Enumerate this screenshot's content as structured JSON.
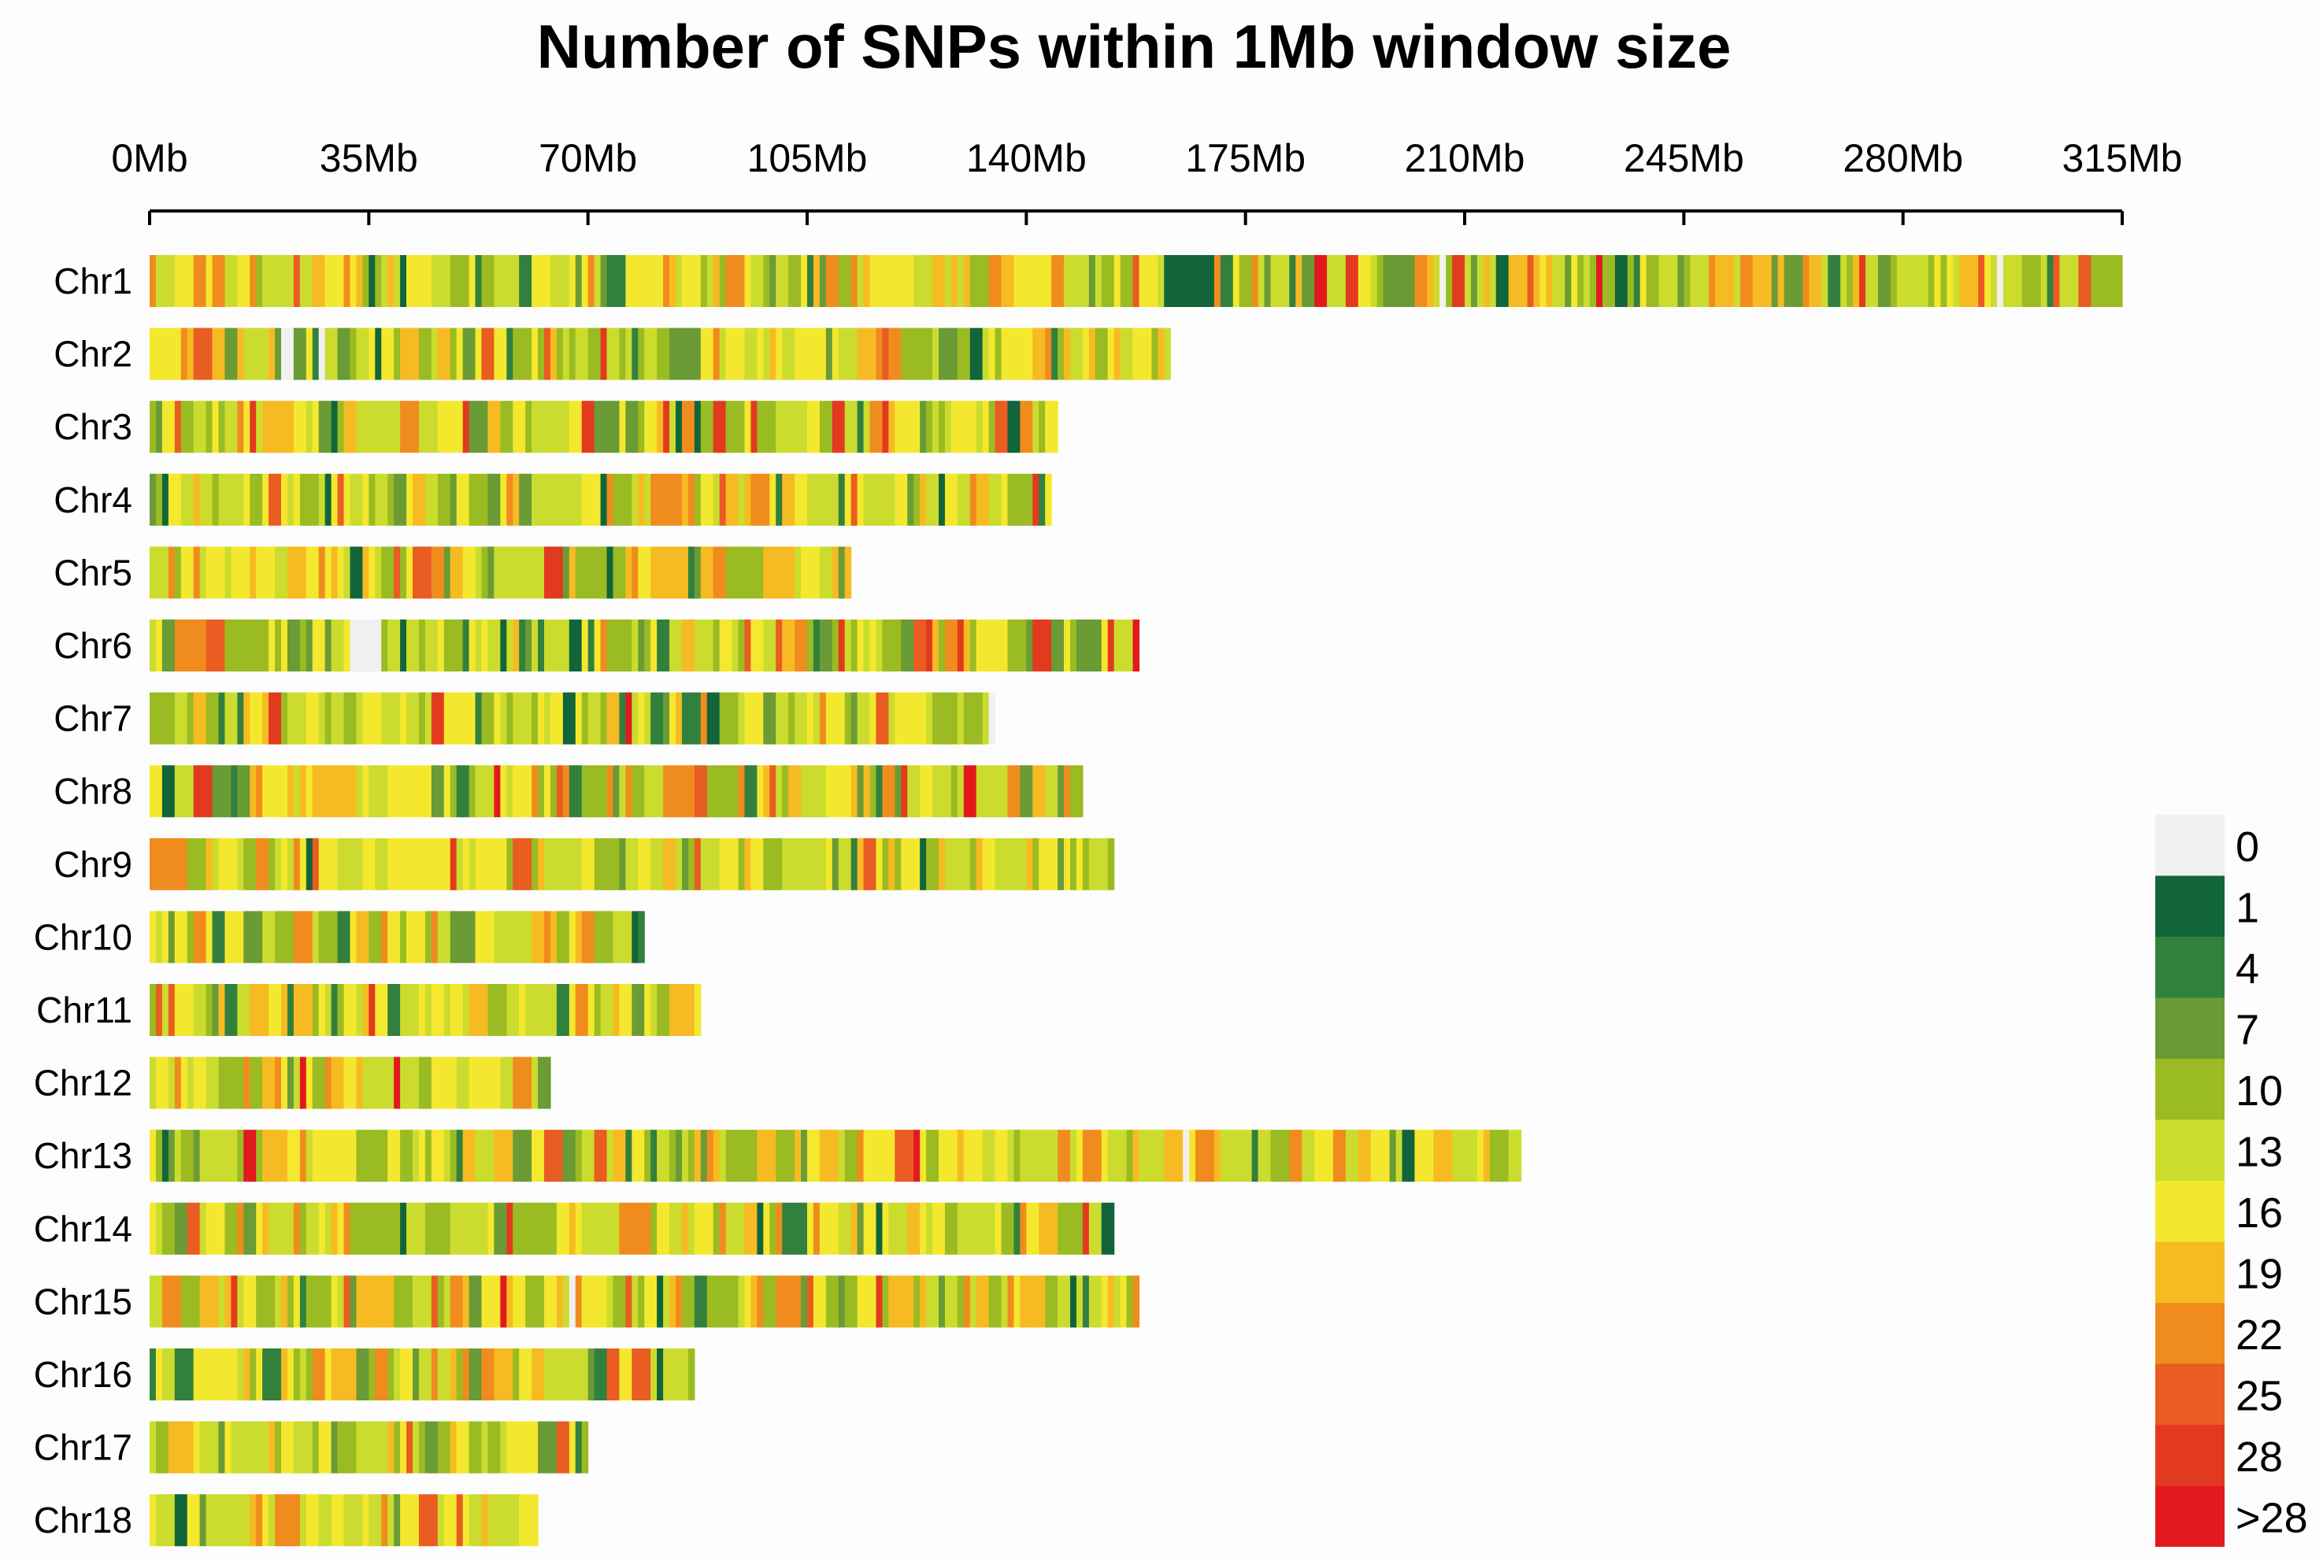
{
  "chart_data": {
    "type": "heatmap",
    "title": "Number of SNPs within 1Mb window size",
    "xlabel": "",
    "ylabel": "",
    "x_unit": "Mb",
    "xlim": [
      0,
      315
    ],
    "x_ticks": [
      0,
      35,
      70,
      105,
      140,
      175,
      210,
      245,
      280,
      315
    ],
    "x_tick_labels": [
      "0Mb",
      "35Mb",
      "70Mb",
      "105Mb",
      "140Mb",
      "175Mb",
      "210Mb",
      "245Mb",
      "280Mb",
      "315Mb"
    ],
    "legend": {
      "placement": "bottom-right",
      "bins": [
        {
          "label": "0",
          "color": "#f0f1f0"
        },
        {
          "label": "1",
          "color": "#12653a"
        },
        {
          "label": "4",
          "color": "#32803e"
        },
        {
          "label": "7",
          "color": "#6a9b35"
        },
        {
          "label": "10",
          "color": "#9bbb22"
        },
        {
          "label": "13",
          "color": "#cbdc2e"
        },
        {
          "label": "16",
          "color": "#f4e82e"
        },
        {
          "label": "19",
          "color": "#f6bb22"
        },
        {
          "label": "22",
          "color": "#f08c1e"
        },
        {
          "label": "25",
          "color": "#e95c22"
        },
        {
          "label": "28",
          "color": "#e23a1f"
        },
        {
          "label": ">28",
          "color": "#e2191f"
        }
      ]
    },
    "chromosomes": [
      {
        "name": "Chr1",
        "length_mb": 315
      },
      {
        "name": "Chr2",
        "length_mb": 163
      },
      {
        "name": "Chr3",
        "length_mb": 145
      },
      {
        "name": "Chr4",
        "length_mb": 144
      },
      {
        "name": "Chr5",
        "length_mb": 112
      },
      {
        "name": "Chr6",
        "length_mb": 158
      },
      {
        "name": "Chr7",
        "length_mb": 135
      },
      {
        "name": "Chr8",
        "length_mb": 149
      },
      {
        "name": "Chr9",
        "length_mb": 154
      },
      {
        "name": "Chr10",
        "length_mb": 79
      },
      {
        "name": "Chr11",
        "length_mb": 88
      },
      {
        "name": "Chr12",
        "length_mb": 64
      },
      {
        "name": "Chr13",
        "length_mb": 219
      },
      {
        "name": "Chr14",
        "length_mb": 154
      },
      {
        "name": "Chr15",
        "length_mb": 158
      },
      {
        "name": "Chr16",
        "length_mb": 87
      },
      {
        "name": "Chr17",
        "length_mb": 70
      },
      {
        "name": "Chr18",
        "length_mb": 62
      }
    ]
  }
}
